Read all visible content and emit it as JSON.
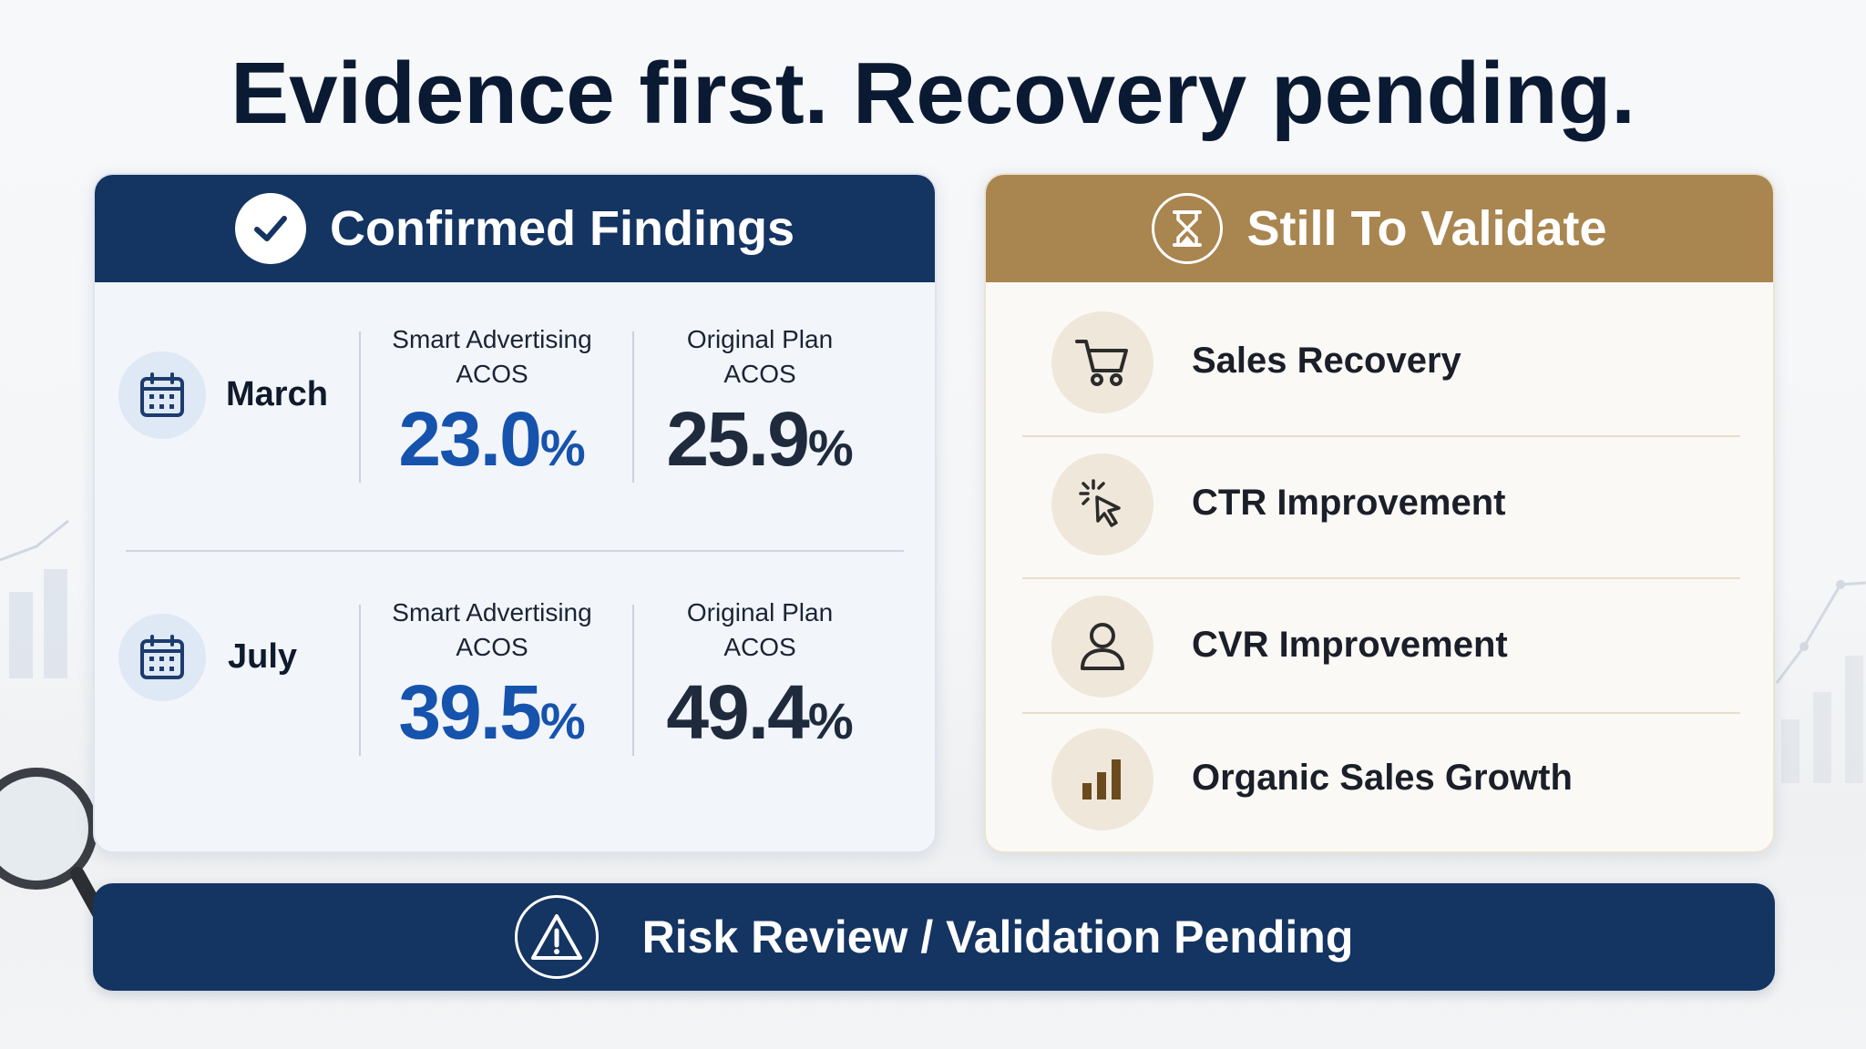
{
  "title": "Evidence first. Recovery pending.",
  "confirmed": {
    "heading": "Confirmed Findings",
    "icon": "check-circle-icon",
    "rows": [
      {
        "month": "March",
        "smart_label_1": "Smart Advertising",
        "smart_label_2": "ACOS",
        "smart_value": "23.0",
        "smart_unit": "%",
        "orig_label_1": "Original Plan",
        "orig_label_2": "ACOS",
        "orig_value": "25.9",
        "orig_unit": "%"
      },
      {
        "month": "July",
        "smart_label_1": "Smart Advertising",
        "smart_label_2": "ACOS",
        "smart_value": "39.5",
        "smart_unit": "%",
        "orig_label_1": "Original Plan",
        "orig_label_2": "ACOS",
        "orig_value": "49.4",
        "orig_unit": "%"
      }
    ]
  },
  "validate": {
    "heading": "Still To Validate",
    "icon": "hourglass-icon",
    "items": [
      {
        "label": "Sales Recovery",
        "icon": "shopping-cart-icon"
      },
      {
        "label": "CTR Improvement",
        "icon": "cursor-click-icon"
      },
      {
        "label": "CVR Improvement",
        "icon": "user-icon"
      },
      {
        "label": "Organic Sales Growth",
        "icon": "bar-chart-icon"
      }
    ]
  },
  "banner": {
    "text": "Risk Review / Validation Pending",
    "icon": "warning-triangle-icon"
  },
  "colors": {
    "navy": "#143462",
    "gold": "#a98550",
    "blue_value": "#1553ad",
    "dark_value": "#1f2b3d"
  }
}
